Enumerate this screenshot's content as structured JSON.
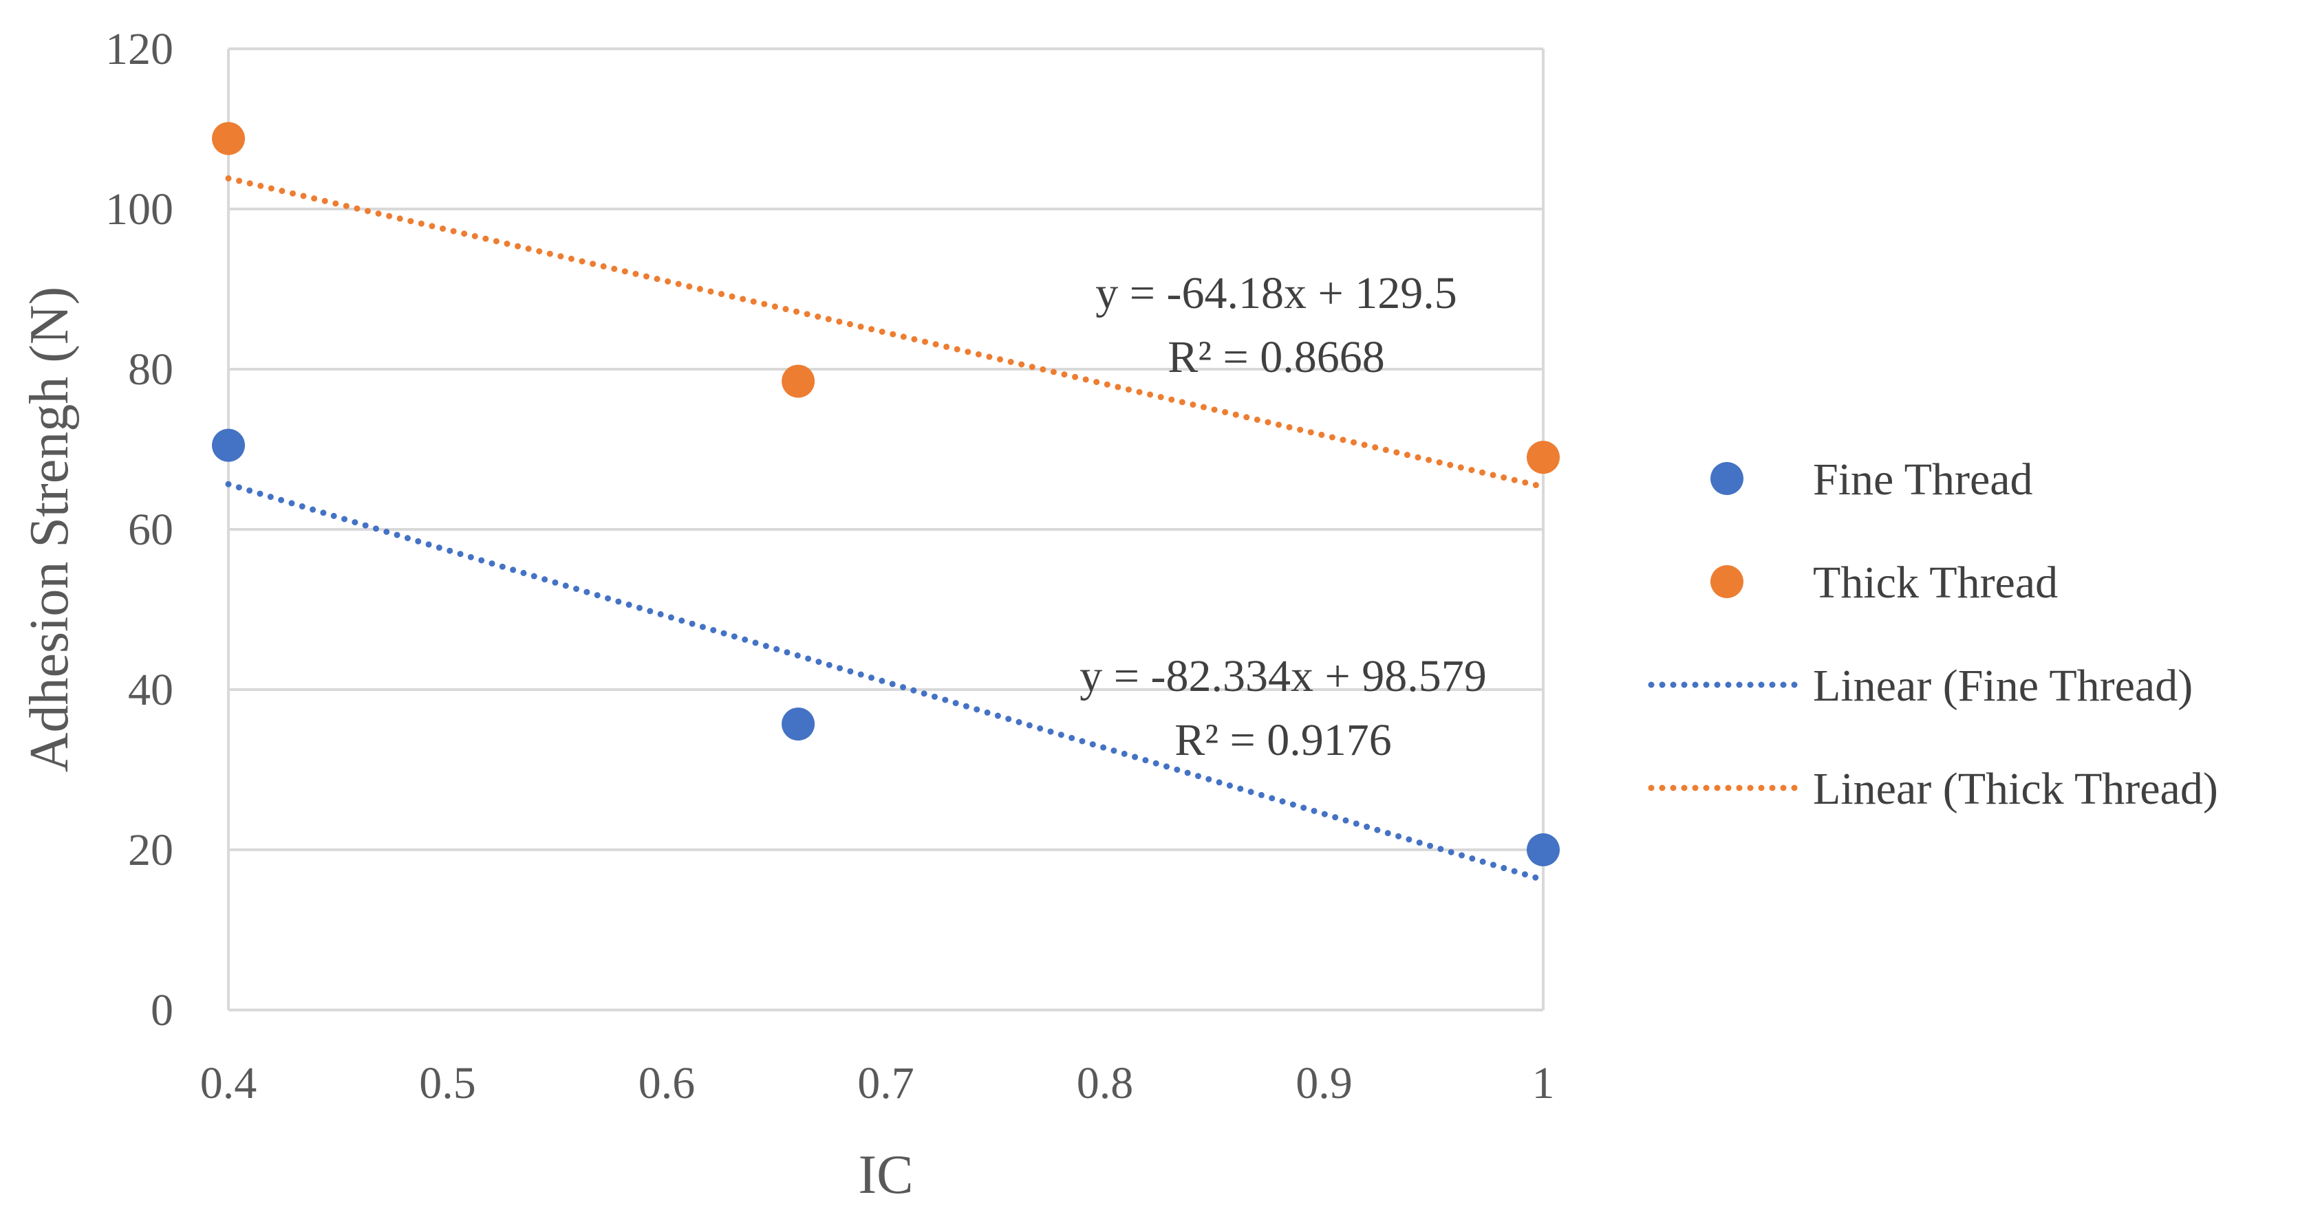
{
  "chart_data": {
    "type": "scatter",
    "title": "",
    "xlabel": "IC",
    "ylabel": "Adhesion Strengh (N)",
    "xlim": [
      0.4,
      1
    ],
    "ylim": [
      0,
      120
    ],
    "xticks": [
      0.4,
      0.5,
      0.6,
      0.7,
      0.8,
      0.9,
      1
    ],
    "xtick_labels": [
      "0.4",
      "0.5",
      "0.6",
      "0.7",
      "0.8",
      "0.9",
      "1"
    ],
    "yticks": [
      0,
      20,
      40,
      60,
      80,
      100,
      120
    ],
    "ytick_labels": [
      "0",
      "20",
      "40",
      "60",
      "80",
      "100",
      "120"
    ],
    "grid": "horizontal",
    "legend_position": "right",
    "series": [
      {
        "name": "Fine Thread",
        "color": "#4472C4",
        "x": [
          0.4,
          0.66,
          1
        ],
        "y": [
          70.5,
          35.7,
          20
        ],
        "trendline": {
          "name": "Linear (Fine Thread)",
          "slope": -82.334,
          "intercept": 98.579,
          "equation": "y = -82.334x + 98.579",
          "r2": "R² = 0.9176"
        }
      },
      {
        "name": "Thick Thread",
        "color": "#ED7D31",
        "x": [
          0.4,
          0.66,
          1
        ],
        "y": [
          108.8,
          78.5,
          69
        ],
        "trendline": {
          "name": "Linear (Thick Thread)",
          "slope": -64.18,
          "intercept": 129.5,
          "equation": "y = -64.18x + 129.5",
          "r2": "R² = 0.8668"
        }
      }
    ]
  }
}
